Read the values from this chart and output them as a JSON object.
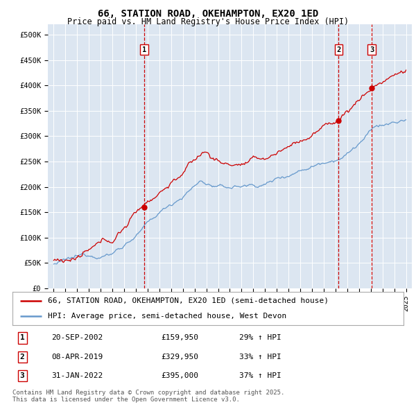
{
  "title": "66, STATION ROAD, OKEHAMPTON, EX20 1ED",
  "subtitle": "Price paid vs. HM Land Registry's House Price Index (HPI)",
  "legend_label_red": "66, STATION ROAD, OKEHAMPTON, EX20 1ED (semi-detached house)",
  "legend_label_blue": "HPI: Average price, semi-detached house, West Devon",
  "footer": "Contains HM Land Registry data © Crown copyright and database right 2025.\nThis data is licensed under the Open Government Licence v3.0.",
  "transactions": [
    {
      "num": 1,
      "date": "20-SEP-2002",
      "price": "£159,950",
      "hpi_pct": "29% ↑ HPI",
      "year_x": 2002.72
    },
    {
      "num": 2,
      "date": "08-APR-2019",
      "price": "£329,950",
      "hpi_pct": "33% ↑ HPI",
      "year_x": 2019.27
    },
    {
      "num": 3,
      "date": "31-JAN-2022",
      "price": "£395,000",
      "hpi_pct": "37% ↑ HPI",
      "year_x": 2022.08
    }
  ],
  "xlim": [
    1994.5,
    2025.5
  ],
  "ylim": [
    0,
    520000
  ],
  "yticks": [
    0,
    50000,
    100000,
    150000,
    200000,
    250000,
    300000,
    350000,
    400000,
    450000,
    500000
  ],
  "ytick_labels": [
    "£0",
    "£50K",
    "£100K",
    "£150K",
    "£200K",
    "£250K",
    "£300K",
    "£350K",
    "£400K",
    "£450K",
    "£500K"
  ],
  "plot_bg_color": "#dce6f1",
  "red_color": "#cc0000",
  "blue_color": "#6699cc",
  "grid_color": "#ffffff",
  "dot_color": "#cc0000",
  "title_fontsize": 10,
  "subtitle_fontsize": 8.5,
  "tick_fontsize": 7.5,
  "legend_fontsize": 8,
  "table_fontsize": 8,
  "footer_fontsize": 6.5
}
